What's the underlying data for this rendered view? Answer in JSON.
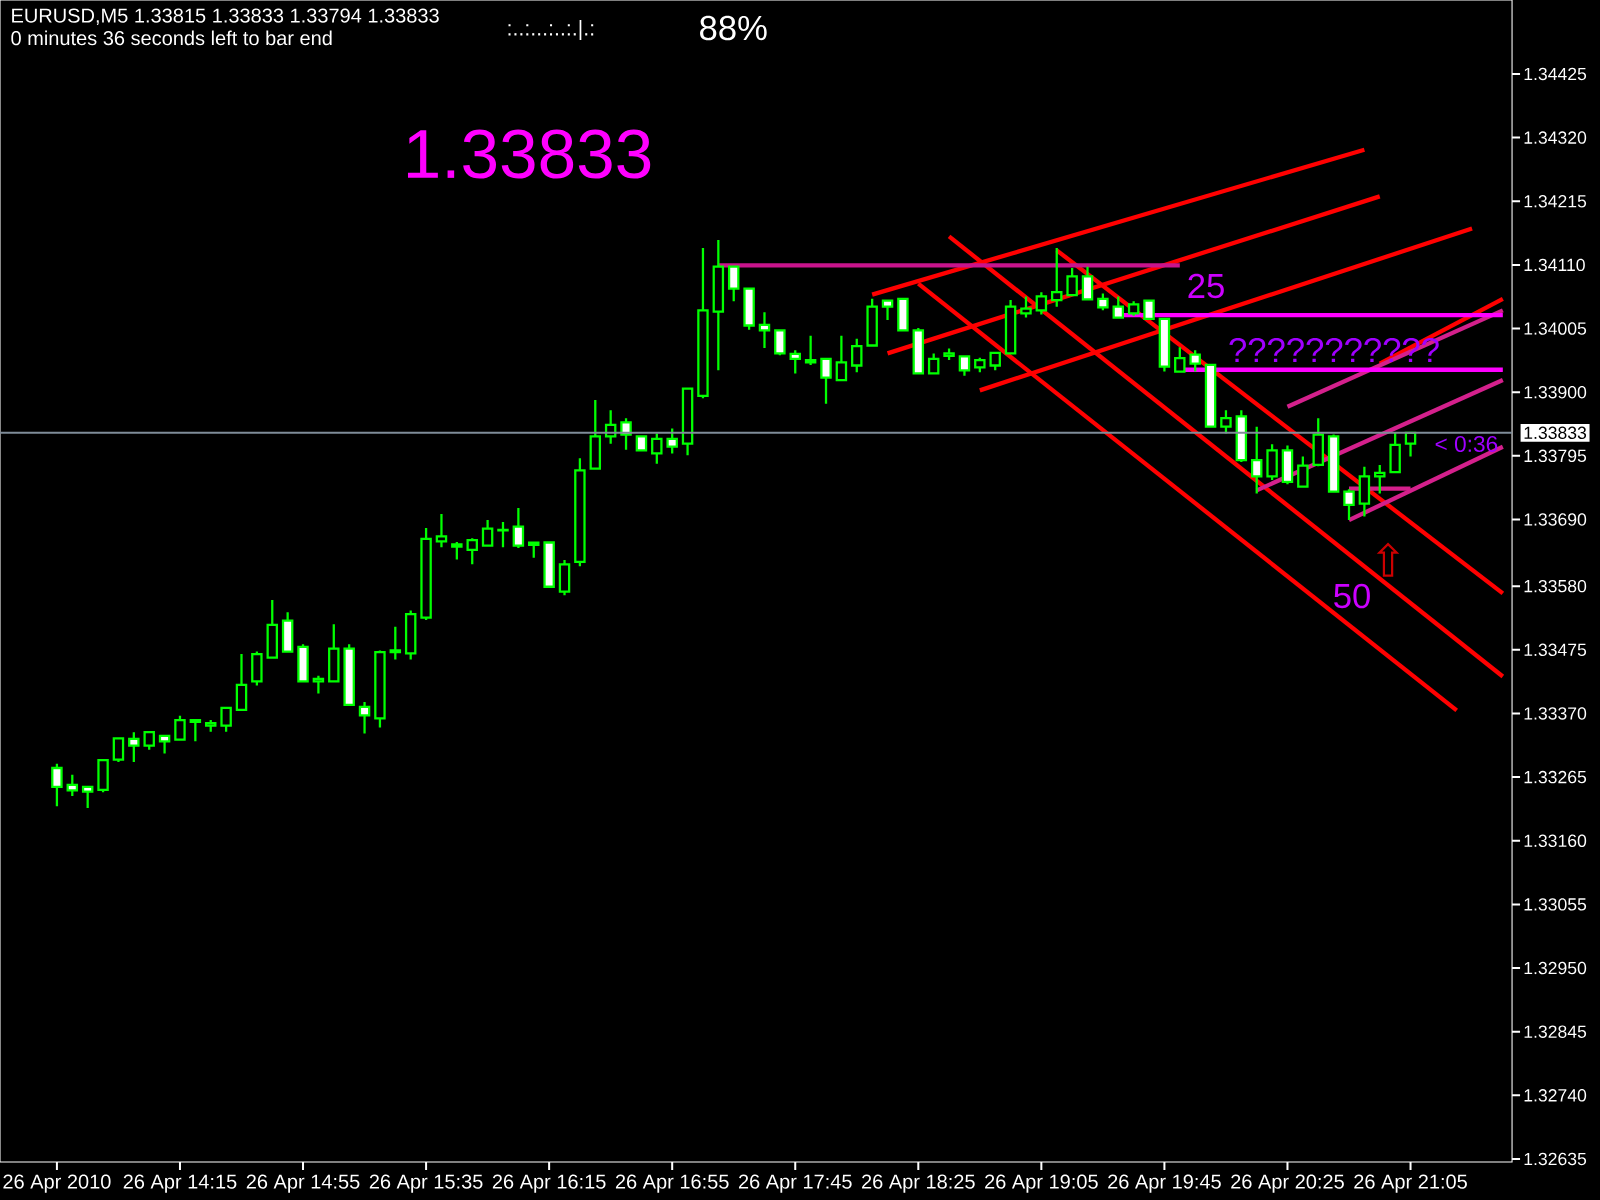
{
  "chart_data": {
    "type": "candlestick",
    "title": "EURUSD,M5  1.33815 1.33833 1.33794 1.33833",
    "subtitle": "0 minutes 36 seconds left to bar end",
    "annotations": [
      ":..:...:..:.|.:",
      "88%",
      "1.33833",
      "25",
      "???????????",
      "50",
      "< 0:36",
      "⇧"
    ],
    "categories": [
      "26 Apr 2010",
      null,
      null,
      null,
      null,
      null,
      null,
      null,
      "26 Apr 14:15",
      null,
      null,
      null,
      null,
      null,
      null,
      null,
      "26 Apr 14:55",
      null,
      null,
      null,
      null,
      null,
      null,
      null,
      "26 Apr 15:35",
      null,
      null,
      null,
      null,
      null,
      null,
      null,
      "26 Apr 16:15",
      null,
      null,
      null,
      null,
      null,
      null,
      null,
      "26 Apr 16:55",
      null,
      null,
      null,
      null,
      null,
      null,
      null,
      "26 Apr 17:45",
      null,
      null,
      null,
      null,
      null,
      null,
      null,
      "26 Apr 18:25",
      null,
      null,
      null,
      null,
      null,
      null,
      null,
      "26 Apr 19:05",
      null,
      null,
      null,
      null,
      null,
      null,
      null,
      "26 Apr 19:45",
      null,
      null,
      null,
      null,
      null,
      null,
      null,
      "26 Apr 20:25",
      null,
      null,
      null,
      null,
      null,
      null,
      null,
      "26 Apr 21:05",
      null,
      null,
      null,
      null,
      null,
      null
    ],
    "color": "#00ff00",
    "ohlc": [
      [
        1.3328,
        1.33287,
        1.33217,
        1.33249
      ],
      [
        1.33252,
        1.33269,
        1.33234,
        1.33243
      ],
      [
        1.33249,
        1.3325,
        1.33214,
        1.33241
      ],
      [
        1.33244,
        1.33295,
        1.3324,
        1.33293
      ],
      [
        1.33294,
        1.33329,
        1.3329,
        1.33329
      ],
      [
        1.33328,
        1.33339,
        1.3329,
        1.33317
      ],
      [
        1.33317,
        1.33339,
        1.3331,
        1.33339
      ],
      [
        1.33333,
        1.33333,
        1.33304,
        1.33324
      ],
      [
        1.33327,
        1.33366,
        1.33327,
        1.33359
      ],
      [
        1.33356,
        1.33359,
        1.33324,
        1.33359
      ],
      [
        1.33352,
        1.33359,
        1.3334,
        1.33352
      ],
      [
        1.3335,
        1.33379,
        1.3334,
        1.33379
      ],
      [
        1.33376,
        1.33468,
        1.33376,
        1.33417
      ],
      [
        1.33423,
        1.33472,
        1.33416,
        1.33468
      ],
      [
        1.33462,
        1.33557,
        1.33462,
        1.33516
      ],
      [
        1.33523,
        1.33537,
        1.33472,
        1.33472
      ],
      [
        1.3348,
        1.33484,
        1.33423,
        1.33423
      ],
      [
        1.33425,
        1.33432,
        1.33403,
        1.33425
      ],
      [
        1.33423,
        1.33517,
        1.33423,
        1.33477
      ],
      [
        1.33477,
        1.33484,
        1.33384,
        1.33384
      ],
      [
        1.33381,
        1.33389,
        1.33337,
        1.33367
      ],
      [
        1.33362,
        1.33474,
        1.33347,
        1.33471
      ],
      [
        1.33471,
        1.33513,
        1.33459,
        1.33474
      ],
      [
        1.33469,
        1.3354,
        1.33459,
        1.33534
      ],
      [
        1.33528,
        1.33676,
        1.33524,
        1.33658
      ],
      [
        1.33654,
        1.33699,
        1.33644,
        1.33662
      ],
      [
        1.33647,
        1.33653,
        1.33624,
        1.33647
      ],
      [
        1.3364,
        1.33659,
        1.33616,
        1.33656
      ],
      [
        1.33647,
        1.33689,
        1.33647,
        1.33675
      ],
      [
        1.33672,
        1.33686,
        1.33644,
        1.33673
      ],
      [
        1.33678,
        1.33709,
        1.33643,
        1.33647
      ],
      [
        1.3365,
        1.3365,
        1.33627,
        1.3365
      ],
      [
        1.33652,
        1.33652,
        1.33579,
        1.33579
      ],
      [
        1.33571,
        1.33623,
        1.33565,
        1.33616
      ],
      [
        1.3362,
        1.33791,
        1.33613,
        1.33771
      ],
      [
        1.33774,
        1.33887,
        1.33774,
        1.33827
      ],
      [
        1.33827,
        1.3387,
        1.33815,
        1.33846
      ],
      [
        1.3385,
        1.33857,
        1.33805,
        1.3383
      ],
      [
        1.33827,
        1.33827,
        1.33804,
        1.33804
      ],
      [
        1.33799,
        1.33832,
        1.33782,
        1.33823
      ],
      [
        1.33823,
        1.3384,
        1.33799,
        1.3381
      ],
      [
        1.33815,
        1.33906,
        1.33796,
        1.33906
      ],
      [
        1.33894,
        1.34138,
        1.3389,
        1.34035
      ],
      [
        1.34033,
        1.34151,
        1.33936,
        1.34107
      ],
      [
        1.34107,
        1.34107,
        1.3405,
        1.34071
      ],
      [
        1.34071,
        1.34071,
        1.34003,
        1.3401
      ],
      [
        1.34011,
        1.34032,
        1.33973,
        1.34002
      ],
      [
        1.34002,
        1.34002,
        1.33961,
        1.33964
      ],
      [
        1.33963,
        1.33969,
        1.33931,
        1.33955
      ],
      [
        1.33951,
        1.33993,
        1.33945,
        1.33951
      ],
      [
        1.33955,
        1.33956,
        1.33881,
        1.33924
      ],
      [
        1.3392,
        1.33993,
        1.33918,
        1.33949
      ],
      [
        1.33944,
        1.33988,
        1.33933,
        1.33976
      ],
      [
        1.33977,
        1.34054,
        1.33976,
        1.34041
      ],
      [
        1.34051,
        1.34051,
        1.34019,
        1.34041
      ],
      [
        1.34054,
        1.34054,
        1.34002,
        1.34002
      ],
      [
        1.34002,
        1.34006,
        1.33931,
        1.33931
      ],
      [
        1.33931,
        1.33964,
        1.33931,
        1.33955
      ],
      [
        1.33962,
        1.33972,
        1.33953,
        1.33962
      ],
      [
        1.33959,
        1.33959,
        1.33927,
        1.33936
      ],
      [
        1.33941,
        1.33957,
        1.33933,
        1.33953
      ],
      [
        1.33944,
        1.33965,
        1.33936,
        1.33965
      ],
      [
        1.33964,
        1.34052,
        1.33963,
        1.34041
      ],
      [
        1.3403,
        1.34058,
        1.34023,
        1.34038
      ],
      [
        1.34035,
        1.34065,
        1.34028,
        1.34058
      ],
      [
        1.34052,
        1.34138,
        1.34041,
        1.34065
      ],
      [
        1.3406,
        1.34105,
        1.34059,
        1.34091
      ],
      [
        1.34091,
        1.34107,
        1.34052,
        1.34053
      ],
      [
        1.34054,
        1.34063,
        1.34035,
        1.3404
      ],
      [
        1.34041,
        1.34058,
        1.34023,
        1.34023
      ],
      [
        1.3403,
        1.3405,
        1.34026,
        1.34045
      ],
      [
        1.34051,
        1.34051,
        1.34021,
        1.34021
      ],
      [
        1.34021,
        1.34021,
        1.33934,
        1.33942
      ],
      [
        1.33934,
        1.33974,
        1.33934,
        1.33956
      ],
      [
        1.33962,
        1.33969,
        1.33934,
        1.33947
      ],
      [
        1.33945,
        1.33945,
        1.33843,
        1.33843
      ],
      [
        1.33843,
        1.3387,
        1.33832,
        1.33857
      ],
      [
        1.3386,
        1.3387,
        1.33785,
        1.33788
      ],
      [
        1.33788,
        1.33843,
        1.33733,
        1.33761
      ],
      [
        1.33761,
        1.33814,
        1.33755,
        1.33804
      ],
      [
        1.33804,
        1.33812,
        1.33748,
        1.33752
      ],
      [
        1.33744,
        1.33794,
        1.33744,
        1.33779
      ],
      [
        1.3378,
        1.33857,
        1.33778,
        1.3383
      ],
      [
        1.33827,
        1.3383,
        1.33734,
        1.33736
      ],
      [
        1.33736,
        1.3374,
        1.33689,
        1.33714
      ],
      [
        1.33716,
        1.33777,
        1.33695,
        1.33761
      ],
      [
        1.33761,
        1.3378,
        1.33733,
        1.33767
      ],
      [
        1.33768,
        1.33834,
        1.33768,
        1.33813
      ],
      [
        1.33815,
        1.33833,
        1.33794,
        1.33833
      ],
      null,
      null,
      null,
      null,
      null,
      null
    ],
    "series": [
      {
        "type": "line",
        "color": "#ff0000",
        "values": [
          null,
          null,
          null,
          null,
          null,
          null,
          null,
          null,
          null,
          null,
          null,
          null,
          null,
          null,
          null,
          null,
          null,
          null,
          null,
          null,
          null,
          null,
          null,
          null,
          null,
          null,
          null,
          null,
          null,
          null,
          null,
          null,
          null,
          null,
          null,
          null,
          null,
          null,
          null,
          null,
          null,
          null,
          null,
          null,
          null,
          null,
          null,
          null,
          null,
          null,
          null,
          null,
          null,
          1.34061,
          null,
          null,
          null,
          null,
          null,
          null,
          null,
          null,
          null,
          null,
          null,
          null,
          null,
          null,
          null,
          null,
          null,
          null,
          null,
          null,
          null,
          null,
          null,
          null,
          null,
          null,
          null,
          null,
          null,
          null,
          null,
          1.343,
          null,
          null,
          null,
          null,
          null,
          null,
          null,
          null,
          null
        ]
      },
      {
        "type": "line",
        "color": "#ff0000",
        "values": [
          null,
          null,
          null,
          null,
          null,
          null,
          null,
          null,
          null,
          null,
          null,
          null,
          null,
          null,
          null,
          null,
          null,
          null,
          null,
          null,
          null,
          null,
          null,
          null,
          null,
          null,
          null,
          null,
          null,
          null,
          null,
          null,
          null,
          null,
          null,
          null,
          null,
          null,
          null,
          null,
          null,
          null,
          null,
          null,
          null,
          null,
          null,
          null,
          null,
          null,
          null,
          null,
          null,
          null,
          1.33964,
          null,
          null,
          null,
          null,
          null,
          null,
          null,
          null,
          null,
          null,
          null,
          null,
          null,
          null,
          null,
          null,
          null,
          null,
          null,
          null,
          null,
          null,
          null,
          null,
          null,
          null,
          null,
          null,
          null,
          null,
          null,
          1.34223,
          null,
          null,
          null,
          null,
          null,
          null,
          null,
          null
        ]
      },
      {
        "type": "line",
        "color": "#ff0000",
        "values": [
          null,
          null,
          null,
          null,
          null,
          null,
          null,
          null,
          null,
          null,
          null,
          null,
          null,
          null,
          null,
          null,
          null,
          null,
          null,
          null,
          null,
          null,
          null,
          null,
          null,
          null,
          null,
          null,
          null,
          null,
          null,
          null,
          null,
          null,
          null,
          null,
          null,
          null,
          null,
          null,
          null,
          null,
          null,
          null,
          null,
          null,
          null,
          null,
          null,
          null,
          null,
          null,
          null,
          null,
          null,
          null,
          null,
          null,
          null,
          null,
          1.33903,
          null,
          null,
          null,
          null,
          null,
          null,
          null,
          null,
          null,
          null,
          null,
          null,
          null,
          null,
          null,
          null,
          null,
          null,
          null,
          null,
          null,
          null,
          null,
          null,
          null,
          null,
          null,
          null,
          null,
          null,
          null,
          1.3417,
          null,
          null
        ]
      },
      {
        "type": "line",
        "color": "#ff0000",
        "values": [
          null,
          null,
          null,
          null,
          null,
          null,
          null,
          null,
          null,
          null,
          null,
          null,
          null,
          null,
          null,
          null,
          null,
          null,
          null,
          null,
          null,
          null,
          null,
          null,
          null,
          null,
          null,
          null,
          null,
          null,
          null,
          null,
          null,
          null,
          null,
          null,
          null,
          null,
          null,
          null,
          null,
          null,
          null,
          null,
          null,
          null,
          null,
          null,
          null,
          null,
          null,
          null,
          null,
          null,
          null,
          null,
          null,
          null,
          null,
          null,
          null,
          null,
          null,
          null,
          null,
          null,
          null,
          null,
          null,
          null,
          null,
          null,
          null,
          null,
          null,
          null,
          null,
          null,
          null,
          null,
          null,
          null,
          null,
          null,
          null,
          null,
          1.33947,
          null,
          null,
          null,
          null,
          null,
          null,
          null,
          1.34054
        ]
      },
      {
        "type": "line",
        "color": "#ff0000",
        "values": [
          null,
          null,
          null,
          null,
          null,
          null,
          null,
          null,
          null,
          null,
          null,
          null,
          null,
          null,
          null,
          null,
          null,
          null,
          null,
          null,
          null,
          null,
          null,
          null,
          null,
          null,
          null,
          null,
          null,
          null,
          null,
          null,
          null,
          null,
          null,
          null,
          null,
          null,
          null,
          null,
          null,
          null,
          null,
          null,
          null,
          null,
          null,
          null,
          null,
          null,
          null,
          null,
          null,
          null,
          null,
          null,
          null,
          null,
          1.34157,
          null,
          null,
          null,
          null,
          null,
          null,
          null,
          null,
          null,
          null,
          null,
          null,
          null,
          null,
          null,
          null,
          null,
          null,
          null,
          null,
          null,
          null,
          null,
          null,
          null,
          null,
          null,
          null,
          null,
          null,
          null,
          null,
          null,
          null,
          null,
          1.33431
        ]
      },
      {
        "type": "line",
        "color": "#ff0000",
        "values": [
          null,
          null,
          null,
          null,
          null,
          null,
          null,
          null,
          null,
          null,
          null,
          null,
          null,
          null,
          null,
          null,
          null,
          null,
          null,
          null,
          null,
          null,
          null,
          null,
          null,
          null,
          null,
          null,
          null,
          null,
          null,
          null,
          null,
          null,
          null,
          null,
          null,
          null,
          null,
          null,
          null,
          null,
          null,
          null,
          null,
          null,
          null,
          null,
          null,
          null,
          null,
          null,
          null,
          null,
          null,
          null,
          1.34079,
          null,
          null,
          null,
          null,
          null,
          null,
          null,
          null,
          null,
          null,
          null,
          null,
          null,
          null,
          null,
          null,
          null,
          null,
          null,
          null,
          null,
          null,
          null,
          null,
          null,
          null,
          null,
          null,
          null,
          null,
          null,
          null,
          null,
          null,
          1.33375,
          null,
          null,
          null
        ]
      },
      {
        "type": "line",
        "color": "#ff0000",
        "values": [
          null,
          null,
          null,
          null,
          null,
          null,
          null,
          null,
          null,
          null,
          null,
          null,
          null,
          null,
          null,
          null,
          null,
          null,
          null,
          null,
          null,
          null,
          null,
          null,
          null,
          null,
          null,
          null,
          null,
          null,
          null,
          null,
          null,
          null,
          null,
          null,
          null,
          null,
          null,
          null,
          null,
          null,
          null,
          null,
          null,
          null,
          null,
          null,
          null,
          null,
          null,
          null,
          null,
          null,
          null,
          null,
          null,
          null,
          null,
          null,
          null,
          null,
          null,
          null,
          null,
          1.34134,
          null,
          null,
          null,
          null,
          null,
          null,
          null,
          null,
          null,
          null,
          null,
          null,
          null,
          null,
          null,
          null,
          null,
          null,
          null,
          null,
          null,
          null,
          null,
          null,
          null,
          null,
          null,
          null,
          1.33568
        ]
      },
      {
        "type": "line",
        "color": "#d4208c",
        "values": [
          null,
          null,
          null,
          null,
          null,
          null,
          null,
          null,
          null,
          null,
          null,
          null,
          null,
          null,
          null,
          null,
          null,
          null,
          null,
          null,
          null,
          null,
          null,
          null,
          null,
          null,
          null,
          null,
          null,
          null,
          null,
          null,
          null,
          null,
          null,
          null,
          null,
          null,
          null,
          null,
          null,
          null,
          null,
          null,
          null,
          null,
          null,
          null,
          null,
          null,
          null,
          null,
          null,
          null,
          null,
          null,
          null,
          null,
          null,
          null,
          null,
          null,
          null,
          null,
          null,
          null,
          null,
          null,
          null,
          null,
          null,
          null,
          null,
          null,
          null,
          null,
          null,
          null,
          null,
          null,
          1.33876,
          null,
          null,
          null,
          null,
          null,
          null,
          null,
          null,
          null,
          null,
          null,
          null,
          null,
          1.34035
        ]
      },
      {
        "type": "line",
        "color": "#d4208c",
        "values": [
          null,
          null,
          null,
          null,
          null,
          null,
          null,
          null,
          null,
          null,
          null,
          null,
          null,
          null,
          null,
          null,
          null,
          null,
          null,
          null,
          null,
          null,
          null,
          null,
          null,
          null,
          null,
          null,
          null,
          null,
          null,
          null,
          null,
          null,
          null,
          null,
          null,
          null,
          null,
          null,
          null,
          null,
          null,
          null,
          null,
          null,
          null,
          null,
          null,
          null,
          null,
          null,
          null,
          null,
          null,
          null,
          null,
          null,
          null,
          null,
          null,
          null,
          null,
          null,
          null,
          null,
          null,
          null,
          null,
          null,
          null,
          null,
          null,
          null,
          null,
          null,
          null,
          null,
          1.33738,
          null,
          null,
          null,
          null,
          null,
          null,
          null,
          null,
          null,
          null,
          null,
          null,
          null,
          null,
          null,
          1.3392
        ]
      },
      {
        "type": "line",
        "color": "#d4208c",
        "values": [
          null,
          null,
          null,
          null,
          null,
          null,
          null,
          null,
          null,
          null,
          null,
          null,
          null,
          null,
          null,
          null,
          null,
          null,
          null,
          null,
          null,
          null,
          null,
          null,
          null,
          null,
          null,
          null,
          null,
          null,
          null,
          null,
          null,
          null,
          null,
          null,
          null,
          null,
          null,
          null,
          null,
          null,
          null,
          null,
          null,
          null,
          null,
          null,
          null,
          null,
          null,
          null,
          null,
          null,
          null,
          null,
          null,
          null,
          null,
          null,
          null,
          null,
          null,
          null,
          null,
          null,
          null,
          null,
          null,
          null,
          null,
          null,
          null,
          null,
          null,
          null,
          null,
          null,
          null,
          null,
          null,
          null,
          null,
          null,
          1.33689,
          null,
          null,
          null,
          null,
          null,
          null,
          null,
          null,
          null,
          1.3381
        ]
      },
      {
        "type": "line",
        "color": "#d4208c",
        "values": [
          null,
          null,
          null,
          null,
          null,
          null,
          null,
          null,
          null,
          null,
          null,
          null,
          null,
          null,
          null,
          null,
          null,
          null,
          null,
          null,
          null,
          null,
          null,
          null,
          null,
          null,
          null,
          null,
          null,
          null,
          null,
          null,
          null,
          null,
          null,
          null,
          null,
          null,
          null,
          null,
          null,
          null,
          null,
          null,
          null,
          null,
          null,
          null,
          null,
          null,
          null,
          null,
          null,
          null,
          null,
          null,
          null,
          null,
          null,
          null,
          null,
          null,
          null,
          null,
          null,
          null,
          null,
          null,
          null,
          null,
          null,
          null,
          null,
          null,
          null,
          null,
          null,
          null,
          null,
          null,
          null,
          null,
          null,
          null,
          1.33741,
          null,
          null,
          null,
          1.33741,
          null,
          null,
          null,
          null,
          null,
          null
        ]
      },
      {
        "type": "line",
        "color": "#c8148c",
        "values": [
          null,
          null,
          null,
          null,
          null,
          null,
          null,
          null,
          null,
          null,
          null,
          null,
          null,
          null,
          null,
          null,
          null,
          null,
          null,
          null,
          null,
          null,
          null,
          null,
          null,
          null,
          null,
          null,
          null,
          null,
          null,
          null,
          null,
          null,
          null,
          null,
          null,
          null,
          null,
          null,
          null,
          null,
          null,
          1.34109,
          null,
          null,
          null,
          null,
          null,
          null,
          null,
          null,
          null,
          null,
          null,
          null,
          null,
          null,
          null,
          null,
          null,
          null,
          null,
          null,
          null,
          null,
          null,
          null,
          null,
          null,
          null,
          null,
          null,
          1.34109,
          null,
          null,
          null,
          null,
          null,
          null,
          null,
          null,
          null,
          null,
          null,
          null,
          null,
          null,
          null,
          null,
          null,
          null,
          null,
          null,
          null
        ]
      },
      {
        "type": "line",
        "color": "#ff00ff",
        "values": [
          null,
          null,
          null,
          null,
          null,
          null,
          null,
          null,
          null,
          null,
          null,
          null,
          null,
          null,
          null,
          null,
          null,
          null,
          null,
          null,
          null,
          null,
          null,
          null,
          null,
          null,
          null,
          null,
          null,
          null,
          null,
          null,
          null,
          null,
          null,
          null,
          null,
          null,
          null,
          null,
          null,
          null,
          null,
          null,
          null,
          null,
          null,
          null,
          null,
          null,
          null,
          null,
          null,
          null,
          null,
          null,
          null,
          null,
          null,
          null,
          null,
          null,
          null,
          null,
          null,
          null,
          null,
          null,
          null,
          1.34027,
          null,
          null,
          null,
          null,
          null,
          null,
          null,
          null,
          null,
          null,
          null,
          null,
          null,
          null,
          null,
          null,
          null,
          null,
          null,
          null,
          null,
          null,
          null,
          null,
          1.34027
        ]
      },
      {
        "type": "line",
        "color": "#ff00ff",
        "values": [
          null,
          null,
          null,
          null,
          null,
          null,
          null,
          null,
          null,
          null,
          null,
          null,
          null,
          null,
          null,
          null,
          null,
          null,
          null,
          null,
          null,
          null,
          null,
          null,
          null,
          null,
          null,
          null,
          null,
          null,
          null,
          null,
          null,
          null,
          null,
          null,
          null,
          null,
          null,
          null,
          null,
          null,
          null,
          null,
          null,
          null,
          null,
          null,
          null,
          null,
          null,
          null,
          null,
          null,
          null,
          null,
          null,
          null,
          null,
          null,
          null,
          null,
          null,
          null,
          null,
          null,
          null,
          null,
          null,
          null,
          null,
          null,
          null,
          1.33937,
          null,
          null,
          null,
          null,
          null,
          null,
          null,
          null,
          null,
          null,
          null,
          null,
          null,
          null,
          null,
          null,
          null,
          null,
          null,
          null,
          1.33937
        ]
      }
    ],
    "ref_lines": [
      {
        "axis": "y",
        "value": 1.33833,
        "label": "1.33833",
        "color": "#7f8c99"
      }
    ],
    "ylim": [
      1.3263,
      1.34547
    ],
    "yticks": [
      {
        "value": 1.34425,
        "label": "1.34425"
      },
      {
        "value": 1.3432,
        "label": "1.34320"
      },
      {
        "value": 1.34215,
        "label": "1.34215"
      },
      {
        "value": 1.3411,
        "label": "1.34110"
      },
      {
        "value": 1.34005,
        "label": "1.34005"
      },
      {
        "value": 1.339,
        "label": "1.33900"
      },
      {
        "value": 1.33795,
        "label": "1.33795"
      },
      {
        "value": 1.3369,
        "label": "1.33690"
      },
      {
        "value": 1.3358,
        "label": "1.33580"
      },
      {
        "value": 1.33475,
        "label": "1.33475"
      },
      {
        "value": 1.3337,
        "label": "1.33370"
      },
      {
        "value": 1.33265,
        "label": "1.33265"
      },
      {
        "value": 1.3316,
        "label": "1.33160"
      },
      {
        "value": 1.33055,
        "label": "1.33055"
      },
      {
        "value": 1.3295,
        "label": "1.32950"
      },
      {
        "value": 1.32845,
        "label": "1.32845"
      },
      {
        "value": 1.3274,
        "label": "1.32740"
      },
      {
        "value": 1.32635,
        "label": "1.32635"
      }
    ]
  }
}
